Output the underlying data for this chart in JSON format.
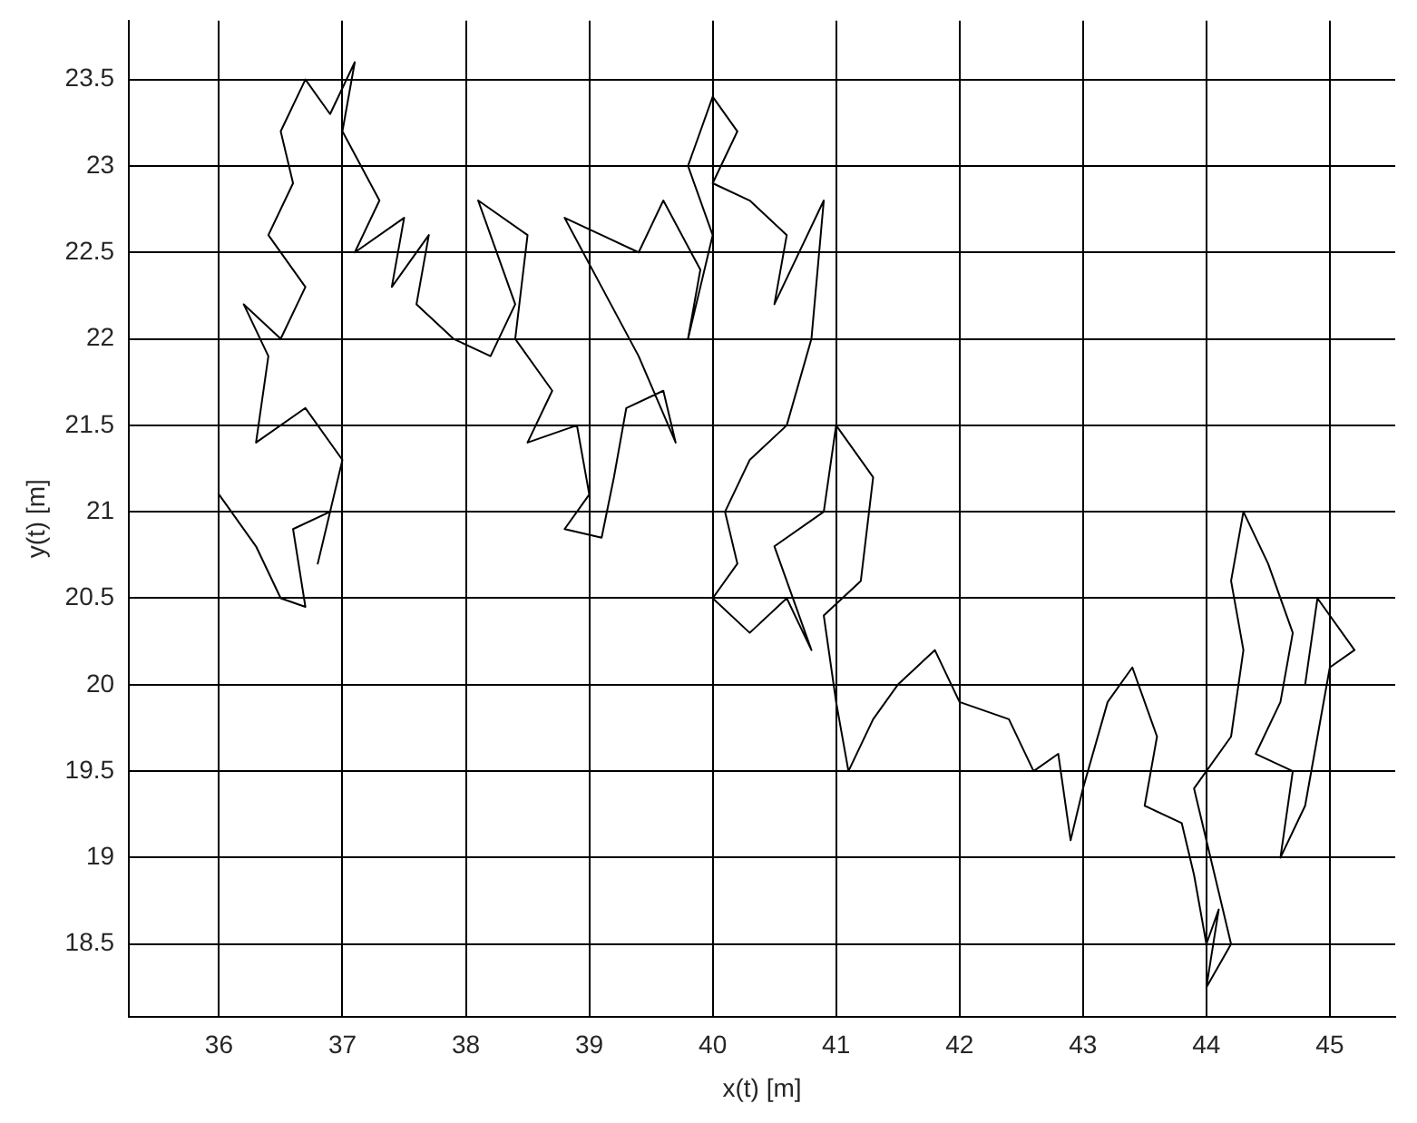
{
  "chart_data": {
    "type": "line",
    "xlabel": "x(t) [m]",
    "ylabel": "y(t) [m]",
    "xlim": [
      35.27,
      45.53
    ],
    "ylim": [
      18.08,
      23.84
    ],
    "xticks": [
      36,
      37,
      38,
      39,
      40,
      41,
      42,
      43,
      44,
      45
    ],
    "yticks": [
      18.5,
      19,
      19.5,
      20,
      20.5,
      21,
      21.5,
      22,
      22.5,
      23,
      23.5
    ],
    "grid": true,
    "series": [
      {
        "color": "#000000",
        "x": [
          36.0,
          36.3,
          36.5,
          36.7,
          36.6,
          36.9,
          36.8,
          37.0,
          36.7,
          36.3,
          36.4,
          36.2,
          36.5,
          36.7,
          36.4,
          36.6,
          36.5,
          36.7,
          36.9,
          37.1,
          37.0,
          37.3,
          37.1,
          37.5,
          37.4,
          37.7,
          37.6,
          37.9,
          38.2,
          38.4,
          38.1,
          38.5,
          38.4,
          38.7,
          38.5,
          38.9,
          39.0,
          38.8,
          39.1,
          39.2,
          39.3,
          39.6,
          39.7,
          39.4,
          39.1,
          38.8,
          39.1,
          39.4,
          39.6,
          39.9,
          39.8,
          40.0,
          39.8,
          40.0,
          40.2,
          40.0,
          40.3,
          40.6,
          40.5,
          40.9,
          40.8,
          40.6,
          40.3,
          40.1,
          40.2,
          40.0,
          40.3,
          40.6,
          40.8,
          40.5,
          40.9,
          41.0,
          41.3,
          41.2,
          40.9,
          41.0,
          41.1,
          41.3,
          41.5,
          41.8,
          42.0,
          42.4,
          42.6,
          42.8,
          42.9,
          43.0,
          43.2,
          43.4,
          43.6,
          43.5,
          43.8,
          43.9,
          44.0,
          44.1,
          44.0,
          44.2,
          44.1,
          43.9,
          44.2,
          44.3,
          44.2,
          44.3,
          44.5,
          44.7,
          44.6,
          44.4,
          44.7,
          44.6,
          44.8,
          44.9,
          45.0,
          45.2,
          44.9,
          44.8
        ],
        "values": [
          21.1,
          20.8,
          20.5,
          20.45,
          20.9,
          21.0,
          20.7,
          21.3,
          21.6,
          21.4,
          21.9,
          22.2,
          22.0,
          22.3,
          22.6,
          22.9,
          23.2,
          23.5,
          23.3,
          23.6,
          23.2,
          22.8,
          22.5,
          22.7,
          22.3,
          22.6,
          22.2,
          22.0,
          21.9,
          22.2,
          22.8,
          22.6,
          22.0,
          21.7,
          21.4,
          21.5,
          21.1,
          20.9,
          20.85,
          21.2,
          21.6,
          21.7,
          21.4,
          21.9,
          22.3,
          22.7,
          22.6,
          22.5,
          22.8,
          22.4,
          22.0,
          22.6,
          23.0,
          23.4,
          23.2,
          22.9,
          22.8,
          22.6,
          22.2,
          22.8,
          22.0,
          21.5,
          21.3,
          21.0,
          20.7,
          20.5,
          20.3,
          20.5,
          20.2,
          20.8,
          21.0,
          21.5,
          21.2,
          20.6,
          20.4,
          19.9,
          19.5,
          19.8,
          20.0,
          20.2,
          19.9,
          19.8,
          19.5,
          19.6,
          19.1,
          19.4,
          19.9,
          20.1,
          19.7,
          19.3,
          19.2,
          18.9,
          18.5,
          18.7,
          18.25,
          18.5,
          18.8,
          19.4,
          19.7,
          20.2,
          20.6,
          21.0,
          20.7,
          20.3,
          19.9,
          19.6,
          19.5,
          19.0,
          19.3,
          19.7,
          20.1,
          20.2,
          20.5,
          20.0
        ]
      }
    ]
  }
}
